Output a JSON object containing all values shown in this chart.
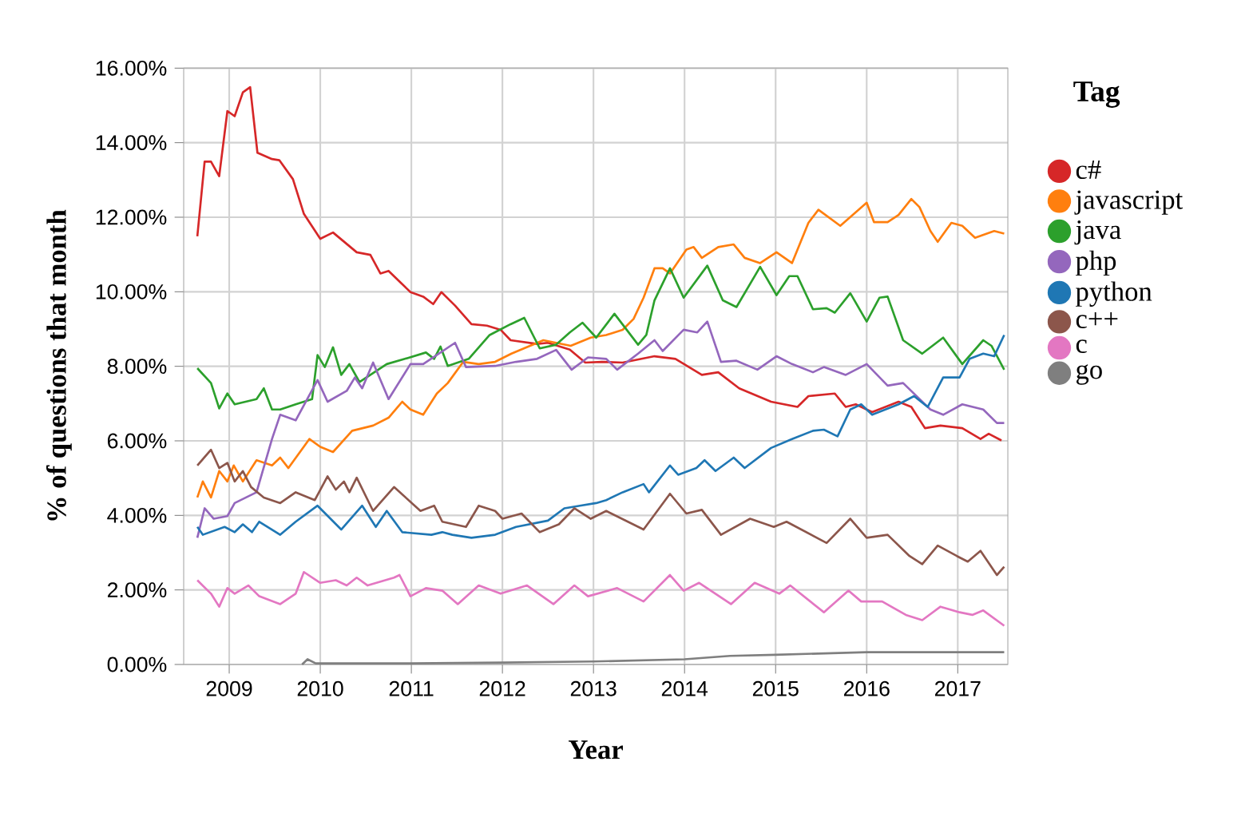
{
  "chart_data": {
    "type": "line",
    "xlabel": "Year",
    "ylabel": "% of questions that month",
    "legend_title": "Tag",
    "legend": "right",
    "grid": true,
    "xlim": [
      2008.5,
      2017.55
    ],
    "ylim": [
      0,
      16
    ],
    "xticks": [
      2009,
      2010,
      2011,
      2012,
      2013,
      2014,
      2015,
      2016,
      2017
    ],
    "yticks": [
      {
        "value": 0,
        "label": "0.00%"
      },
      {
        "value": 2,
        "label": "2.00%"
      },
      {
        "value": 4,
        "label": "4.00%"
      },
      {
        "value": 6,
        "label": "6.00%"
      },
      {
        "value": 8,
        "label": "8.00%"
      },
      {
        "value": 10,
        "label": "10.00%"
      },
      {
        "value": 12,
        "label": "12.00%"
      },
      {
        "value": 14,
        "label": "14.00%"
      },
      {
        "value": 16,
        "label": "16.00%"
      }
    ],
    "series": [
      {
        "name": "c#",
        "color": "#d62728",
        "x": [
          2008.65,
          2008.73,
          2008.8,
          2008.89,
          2008.98,
          2009.06,
          2009.15,
          2009.23,
          2009.31,
          2009.47,
          2009.55,
          2009.7,
          2009.82,
          2010.0,
          2010.14,
          2010.4,
          2010.55,
          2010.66,
          2010.75,
          2010.99,
          2011.13,
          2011.24,
          2011.33,
          2011.48,
          2011.66,
          2011.83,
          2011.98,
          2012.09,
          2012.38,
          2012.5,
          2012.74,
          2012.91,
          2013.09,
          2013.32,
          2013.67,
          2013.9,
          2014.19,
          2014.37,
          2014.6,
          2014.95,
          2015.24,
          2015.36,
          2015.65,
          2015.77,
          2015.88,
          2016.06,
          2016.35,
          2016.49,
          2016.64,
          2016.81,
          2017.05,
          2017.25,
          2017.34,
          2017.48
        ],
        "values": [
          11.49,
          13.49,
          13.49,
          13.1,
          14.85,
          14.71,
          15.35,
          15.49,
          13.73,
          13.56,
          13.53,
          13.02,
          12.09,
          11.42,
          11.59,
          11.06,
          10.99,
          10.49,
          10.56,
          9.99,
          9.87,
          9.67,
          9.99,
          9.63,
          9.13,
          9.09,
          8.98,
          8.7,
          8.6,
          8.63,
          8.45,
          8.1,
          8.12,
          8.1,
          8.27,
          8.2,
          7.77,
          7.84,
          7.41,
          7.05,
          6.91,
          7.2,
          7.27,
          6.91,
          6.98,
          6.77,
          7.05,
          6.91,
          6.34,
          6.41,
          6.34,
          6.05,
          6.19,
          6.01
        ]
      },
      {
        "name": "javascript",
        "color": "#ff7f0e",
        "x": [
          2008.65,
          2008.71,
          2008.8,
          2008.89,
          2008.98,
          2009.05,
          2009.15,
          2009.3,
          2009.47,
          2009.56,
          2009.65,
          2009.88,
          2010.0,
          2010.14,
          2010.35,
          2010.58,
          2010.75,
          2010.9,
          2010.99,
          2011.13,
          2011.28,
          2011.4,
          2011.57,
          2011.74,
          2011.92,
          2012.1,
          2012.45,
          2012.75,
          2012.97,
          2013.14,
          2013.32,
          2013.44,
          2013.55,
          2013.67,
          2013.76,
          2013.84,
          2014.02,
          2014.1,
          2014.19,
          2014.37,
          2014.54,
          2014.66,
          2014.83,
          2015.01,
          2015.18,
          2015.36,
          2015.47,
          2015.71,
          2016.0,
          2016.08,
          2016.23,
          2016.35,
          2016.49,
          2016.58,
          2016.7,
          2016.78,
          2016.93,
          2017.05,
          2017.19,
          2017.4,
          2017.51
        ],
        "values": [
          4.48,
          4.91,
          4.48,
          5.19,
          4.91,
          5.34,
          4.91,
          5.48,
          5.34,
          5.55,
          5.27,
          6.05,
          5.84,
          5.7,
          6.27,
          6.41,
          6.62,
          7.05,
          6.84,
          6.7,
          7.27,
          7.55,
          8.12,
          8.06,
          8.12,
          8.34,
          8.7,
          8.55,
          8.77,
          8.84,
          8.98,
          9.27,
          9.84,
          10.63,
          10.63,
          10.49,
          11.13,
          11.2,
          10.91,
          11.2,
          11.27,
          10.91,
          10.77,
          11.06,
          10.77,
          11.85,
          12.2,
          11.77,
          12.39,
          11.87,
          11.87,
          12.06,
          12.49,
          12.27,
          11.63,
          11.34,
          11.85,
          11.77,
          11.45,
          11.63,
          11.56
        ]
      },
      {
        "name": "java",
        "color": "#2ca02c",
        "x": [
          2008.65,
          2008.8,
          2008.89,
          2008.98,
          2009.06,
          2009.3,
          2009.38,
          2009.47,
          2009.56,
          2009.73,
          2009.91,
          2009.97,
          2010.05,
          2010.14,
          2010.23,
          2010.32,
          2010.43,
          2010.73,
          2010.93,
          2011.16,
          2011.25,
          2011.32,
          2011.4,
          2011.63,
          2011.86,
          2012.09,
          2012.24,
          2012.41,
          2012.59,
          2012.74,
          2012.88,
          2013.03,
          2013.23,
          2013.49,
          2013.58,
          2013.67,
          2013.84,
          2013.99,
          2014.25,
          2014.42,
          2014.57,
          2014.83,
          2015.01,
          2015.15,
          2015.24,
          2015.41,
          2015.56,
          2015.65,
          2015.82,
          2016.0,
          2016.14,
          2016.23,
          2016.4,
          2016.61,
          2016.84,
          2017.05,
          2017.28,
          2017.37,
          2017.51
        ],
        "values": [
          7.95,
          7.55,
          6.87,
          7.27,
          6.98,
          7.12,
          7.41,
          6.84,
          6.84,
          6.98,
          7.12,
          8.3,
          7.98,
          8.51,
          7.77,
          8.06,
          7.58,
          8.06,
          8.2,
          8.37,
          8.2,
          8.53,
          8.01,
          8.2,
          8.84,
          9.13,
          9.3,
          8.48,
          8.58,
          8.91,
          9.17,
          8.77,
          9.41,
          8.58,
          8.84,
          9.77,
          10.63,
          9.84,
          10.7,
          9.77,
          9.59,
          10.67,
          9.91,
          10.42,
          10.42,
          9.53,
          9.56,
          9.44,
          9.96,
          9.2,
          9.84,
          9.87,
          8.7,
          8.34,
          8.77,
          8.06,
          8.7,
          8.55,
          7.91
        ]
      },
      {
        "name": "php",
        "color": "#9467bd",
        "x": [
          2008.65,
          2008.73,
          2008.83,
          2008.98,
          2009.06,
          2009.3,
          2009.47,
          2009.56,
          2009.73,
          2009.97,
          2010.08,
          2010.29,
          2010.38,
          2010.46,
          2010.58,
          2010.75,
          2010.99,
          2011.13,
          2011.48,
          2011.6,
          2011.92,
          2012.15,
          2012.38,
          2012.59,
          2012.76,
          2012.94,
          2013.14,
          2013.26,
          2013.49,
          2013.67,
          2013.76,
          2013.99,
          2014.14,
          2014.25,
          2014.4,
          2014.57,
          2014.8,
          2015.01,
          2015.18,
          2015.41,
          2015.53,
          2015.77,
          2016.0,
          2016.23,
          2016.4,
          2016.7,
          2016.84,
          2017.05,
          2017.28,
          2017.43,
          2017.51
        ],
        "values": [
          3.4,
          4.19,
          3.91,
          3.98,
          4.33,
          4.62,
          6.05,
          6.7,
          6.55,
          7.63,
          7.05,
          7.34,
          7.7,
          7.41,
          8.1,
          7.12,
          8.06,
          8.06,
          8.63,
          7.98,
          8.01,
          8.12,
          8.2,
          8.44,
          7.91,
          8.24,
          8.2,
          7.91,
          8.34,
          8.7,
          8.41,
          8.98,
          8.91,
          9.2,
          8.12,
          8.15,
          7.91,
          8.27,
          8.06,
          7.84,
          7.98,
          7.77,
          8.06,
          7.48,
          7.55,
          6.84,
          6.7,
          6.98,
          6.84,
          6.48,
          6.48
        ]
      },
      {
        "name": "python",
        "color": "#1f77b4",
        "x": [
          2008.65,
          2008.71,
          2008.95,
          2009.06,
          2009.15,
          2009.25,
          2009.33,
          2009.56,
          2009.73,
          2009.97,
          2010.23,
          2010.46,
          2010.61,
          2010.73,
          2010.9,
          2011.22,
          2011.34,
          2011.45,
          2011.66,
          2011.92,
          2012.15,
          2012.5,
          2012.68,
          2012.85,
          2013.03,
          2013.14,
          2013.32,
          2013.55,
          2013.61,
          2013.84,
          2013.93,
          2014.13,
          2014.22,
          2014.34,
          2014.54,
          2014.66,
          2014.95,
          2015.18,
          2015.41,
          2015.53,
          2015.68,
          2015.82,
          2015.94,
          2016.06,
          2016.35,
          2016.52,
          2016.67,
          2016.84,
          2017.02,
          2017.13,
          2017.28,
          2017.4,
          2017.51
        ],
        "values": [
          3.69,
          3.48,
          3.69,
          3.55,
          3.76,
          3.55,
          3.83,
          3.48,
          3.83,
          4.26,
          3.62,
          4.26,
          3.69,
          4.12,
          3.55,
          3.48,
          3.55,
          3.48,
          3.4,
          3.48,
          3.69,
          3.86,
          4.19,
          4.26,
          4.33,
          4.41,
          4.62,
          4.84,
          4.62,
          5.34,
          5.09,
          5.27,
          5.48,
          5.19,
          5.55,
          5.27,
          5.81,
          6.05,
          6.27,
          6.3,
          6.12,
          6.84,
          6.98,
          6.7,
          6.98,
          7.2,
          6.91,
          7.7,
          7.7,
          8.2,
          8.34,
          8.27,
          8.84
        ]
      },
      {
        "name": "c++",
        "color": "#8c564b",
        "x": [
          2008.65,
          2008.8,
          2008.89,
          2008.98,
          2009.06,
          2009.15,
          2009.24,
          2009.38,
          2009.56,
          2009.73,
          2009.94,
          2010.08,
          2010.17,
          2010.26,
          2010.32,
          2010.4,
          2010.58,
          2010.81,
          2011.1,
          2011.25,
          2011.34,
          2011.6,
          2011.74,
          2011.92,
          2012.0,
          2012.21,
          2012.41,
          2012.62,
          2012.79,
          2012.97,
          2013.14,
          2013.55,
          2013.84,
          2014.02,
          2014.19,
          2014.4,
          2014.72,
          2014.98,
          2015.12,
          2015.56,
          2015.82,
          2016.0,
          2016.23,
          2016.47,
          2016.61,
          2016.78,
          2016.99,
          2017.11,
          2017.25,
          2017.43,
          2017.51
        ],
        "values": [
          5.34,
          5.76,
          5.27,
          5.41,
          4.91,
          5.19,
          4.76,
          4.48,
          4.33,
          4.62,
          4.41,
          5.05,
          4.69,
          4.91,
          4.62,
          5.01,
          4.12,
          4.76,
          4.12,
          4.26,
          3.83,
          3.69,
          4.26,
          4.12,
          3.91,
          4.05,
          3.55,
          3.76,
          4.19,
          3.91,
          4.12,
          3.62,
          4.58,
          4.05,
          4.15,
          3.48,
          3.91,
          3.69,
          3.83,
          3.26,
          3.91,
          3.4,
          3.48,
          2.91,
          2.69,
          3.19,
          2.91,
          2.76,
          3.05,
          2.4,
          2.62
        ]
      },
      {
        "name": "c",
        "color": "#e377c2",
        "x": [
          2008.65,
          2008.8,
          2008.89,
          2008.98,
          2009.06,
          2009.21,
          2009.33,
          2009.56,
          2009.73,
          2009.82,
          2010.0,
          2010.17,
          2010.29,
          2010.4,
          2010.52,
          2010.81,
          2010.87,
          2010.99,
          2011.16,
          2011.34,
          2011.51,
          2011.74,
          2011.98,
          2012.27,
          2012.56,
          2012.79,
          2012.94,
          2013.26,
          2013.55,
          2013.84,
          2013.99,
          2014.16,
          2014.51,
          2014.77,
          2015.04,
          2015.16,
          2015.53,
          2015.8,
          2015.94,
          2016.17,
          2016.43,
          2016.61,
          2016.81,
          2017.02,
          2017.16,
          2017.28,
          2017.51
        ],
        "values": [
          2.26,
          1.9,
          1.55,
          2.05,
          1.9,
          2.12,
          1.83,
          1.62,
          1.9,
          2.48,
          2.19,
          2.26,
          2.12,
          2.33,
          2.12,
          2.33,
          2.4,
          1.83,
          2.05,
          1.98,
          1.62,
          2.12,
          1.9,
          2.12,
          1.62,
          2.12,
          1.83,
          2.05,
          1.69,
          2.4,
          1.98,
          2.19,
          1.62,
          2.19,
          1.9,
          2.12,
          1.4,
          1.98,
          1.69,
          1.69,
          1.33,
          1.19,
          1.55,
          1.4,
          1.33,
          1.45,
          1.04
        ]
      },
      {
        "name": "go",
        "color": "#7f7f7f",
        "x": [
          2009.8,
          2009.86,
          2009.95,
          2011.0,
          2012.0,
          2013.0,
          2014.0,
          2014.5,
          2015.0,
          2016.0,
          2017.51
        ],
        "values": [
          0.0,
          0.14,
          0.03,
          0.03,
          0.05,
          0.08,
          0.14,
          0.23,
          0.26,
          0.33,
          0.33
        ]
      }
    ]
  }
}
